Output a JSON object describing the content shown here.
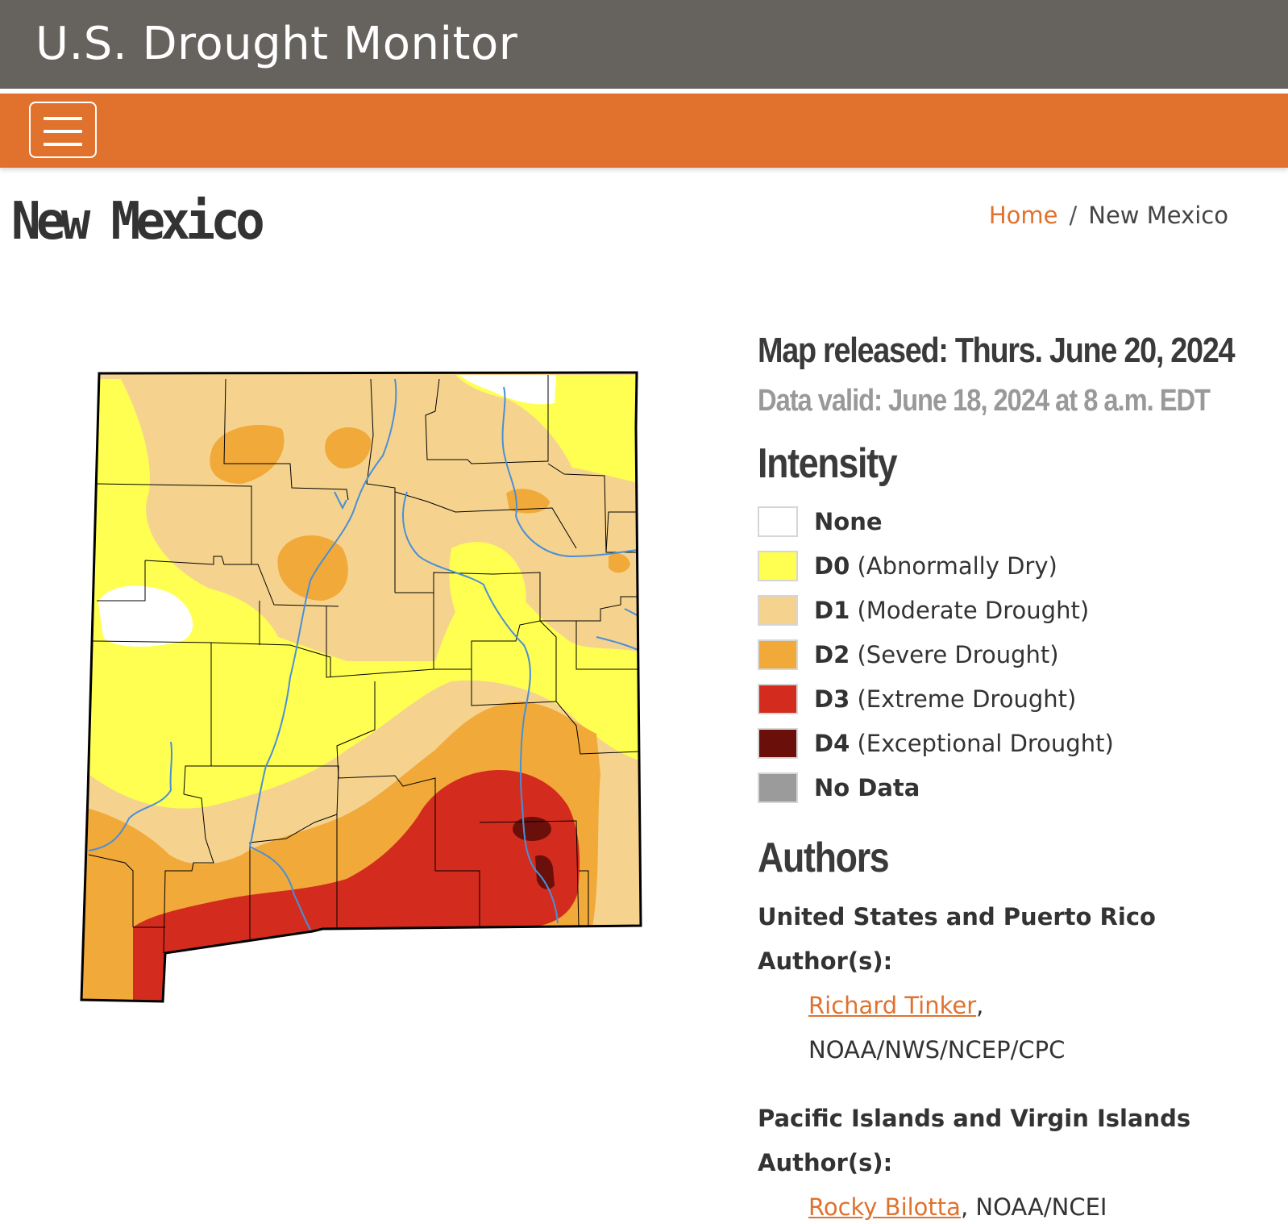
{
  "header": {
    "site_title": "U.S. Drought Monitor"
  },
  "nav": {
    "menu_button_icon": "hamburger-menu-icon"
  },
  "page": {
    "title": "New Mexico"
  },
  "breadcrumb": {
    "home": "Home",
    "separator": "/",
    "current": "New Mexico"
  },
  "map": {
    "map_type": "drought-intensity-choropleth",
    "region": "New Mexico",
    "colors": {
      "none": "#ffffff",
      "D0": "#ffff52",
      "D1": "#f5d38e",
      "D2": "#f1a93a",
      "D3": "#d32c1e",
      "D4": "#6b0f0b",
      "no_data": "#9b9b9b",
      "rivers": "#4a8fd6",
      "county_lines": "#000000"
    }
  },
  "info": {
    "released": "Map released: Thurs. June 20, 2024",
    "valid": "Data valid: June 18, 2024 at 8 a.m. EDT"
  },
  "legend": {
    "title": "Intensity",
    "items": [
      {
        "code": "None",
        "desc": "",
        "color": "#ffffff"
      },
      {
        "code": "D0",
        "desc": "(Abnormally Dry)",
        "color": "#ffff52"
      },
      {
        "code": "D1",
        "desc": "(Moderate Drought)",
        "color": "#f5d38e"
      },
      {
        "code": "D2",
        "desc": "(Severe Drought)",
        "color": "#f1a93a"
      },
      {
        "code": "D3",
        "desc": "(Extreme Drought)",
        "color": "#d32c1e"
      },
      {
        "code": "D4",
        "desc": "(Exceptional Drought)",
        "color": "#6b0f0b"
      },
      {
        "code": "No Data",
        "desc": "",
        "color": "#9b9b9b"
      }
    ]
  },
  "authors": {
    "title": "Authors",
    "groups": [
      {
        "title": "United States and Puerto Rico Author(s):",
        "name": "Richard Tinker",
        "after_name": ",",
        "affiliation": "NOAA/NWS/NCEP/CPC"
      },
      {
        "title_line1": "Pacific Islands and Virgin Islands",
        "title_line2": "Author(s):",
        "name": "Rocky Bilotta",
        "affiliation": ", NOAA/NCEI"
      }
    ]
  }
}
